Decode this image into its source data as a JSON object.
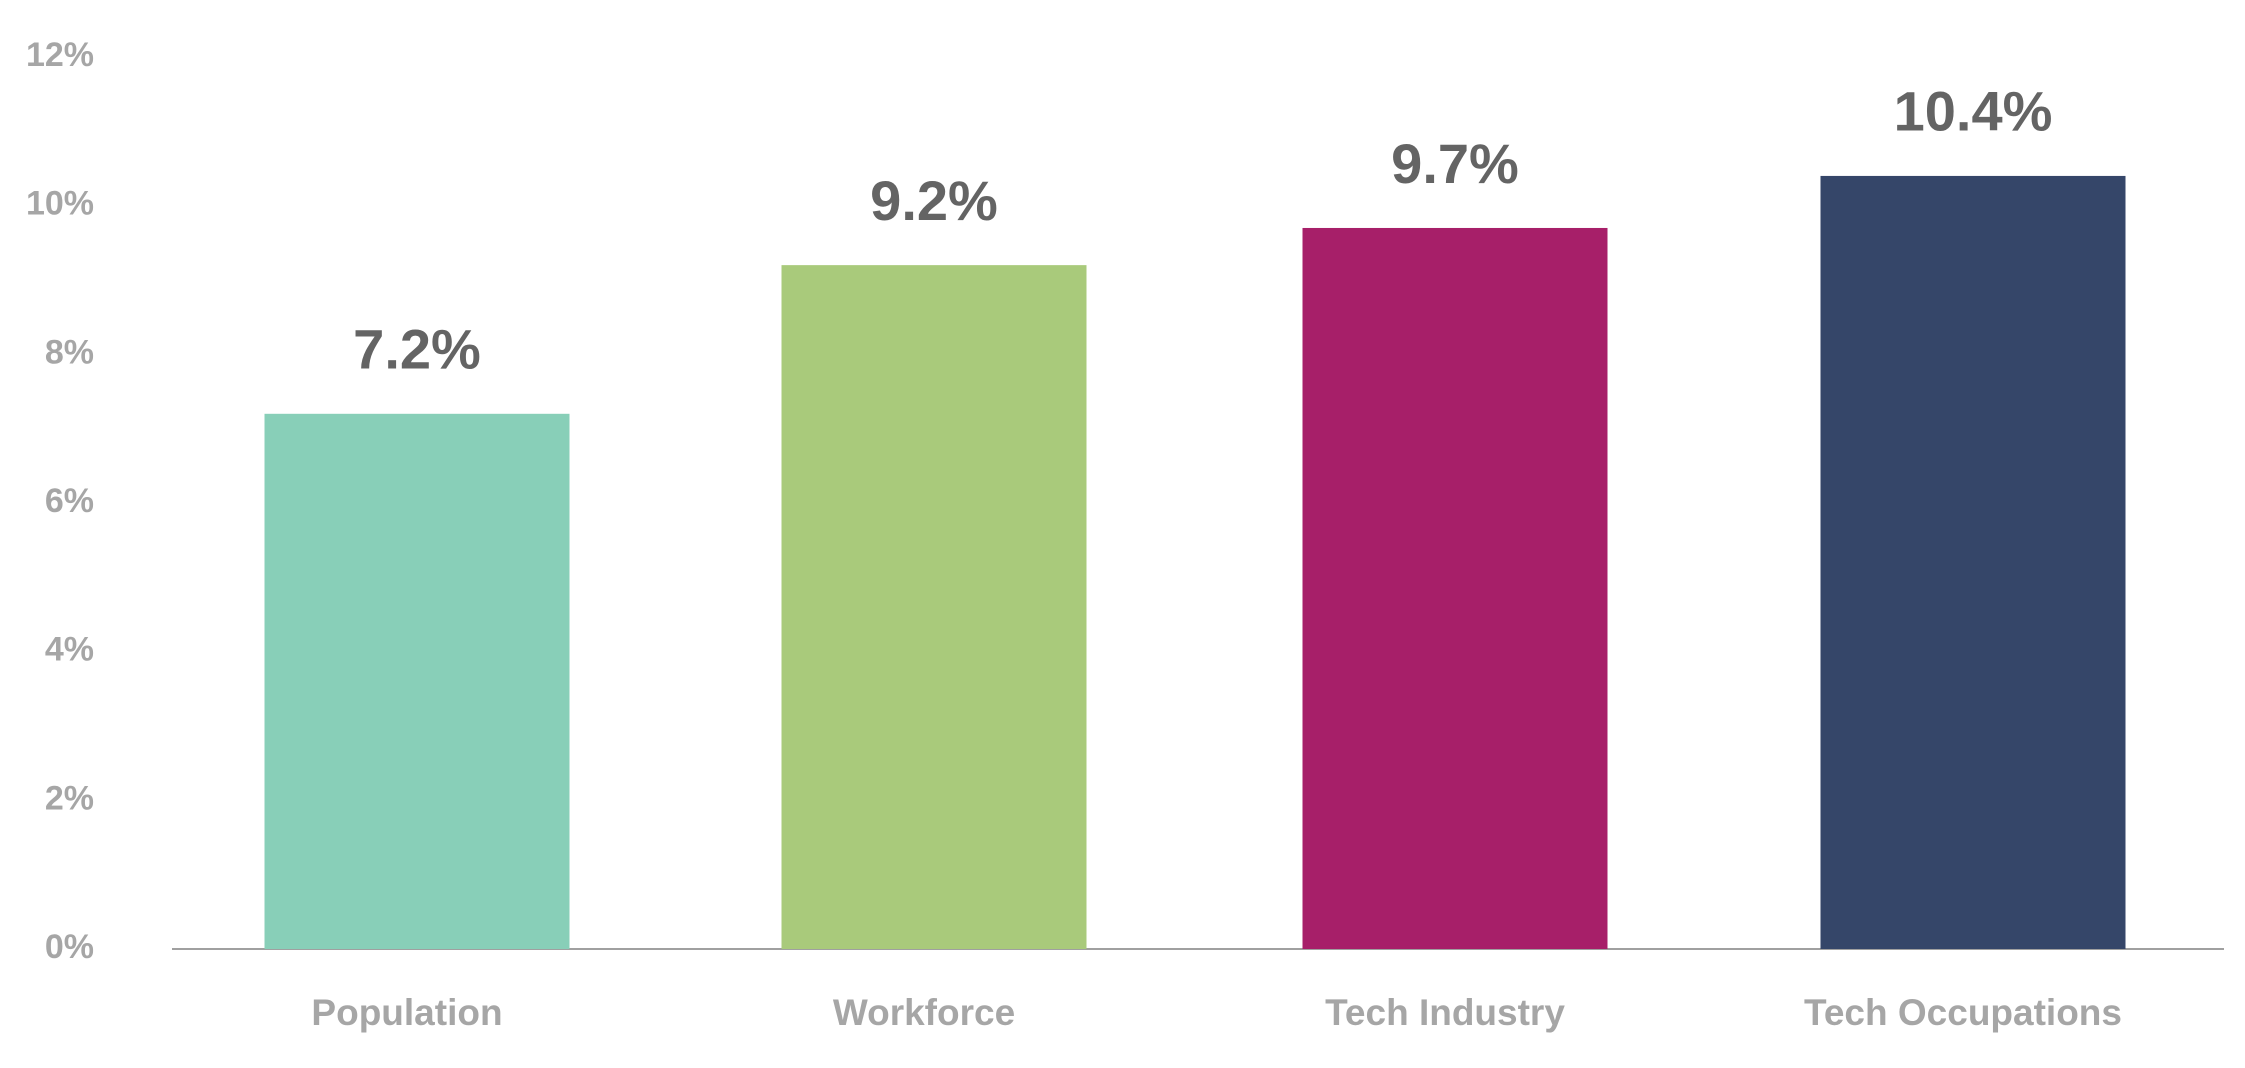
{
  "chart_data": {
    "type": "bar",
    "categories": [
      "Population",
      "Workforce",
      "Tech Industry",
      "Tech Occupations"
    ],
    "values": [
      7.2,
      9.2,
      9.7,
      10.4
    ],
    "value_labels": [
      "7.2%",
      "9.2%",
      "9.7%",
      "10.4%"
    ],
    "colors": [
      "#88cfb8",
      "#a9ca7b",
      "#a71f69",
      "#354669"
    ],
    "ylim": [
      0,
      12
    ],
    "yticks": [
      {
        "value": 0,
        "label": "0%"
      },
      {
        "value": 2,
        "label": "2%"
      },
      {
        "value": 4,
        "label": "4%"
      },
      {
        "value": 6,
        "label": "6%"
      },
      {
        "value": 8,
        "label": "8%"
      },
      {
        "value": 10,
        "label": "10%"
      },
      {
        "value": 12,
        "label": "12%"
      }
    ],
    "grid": false
  }
}
